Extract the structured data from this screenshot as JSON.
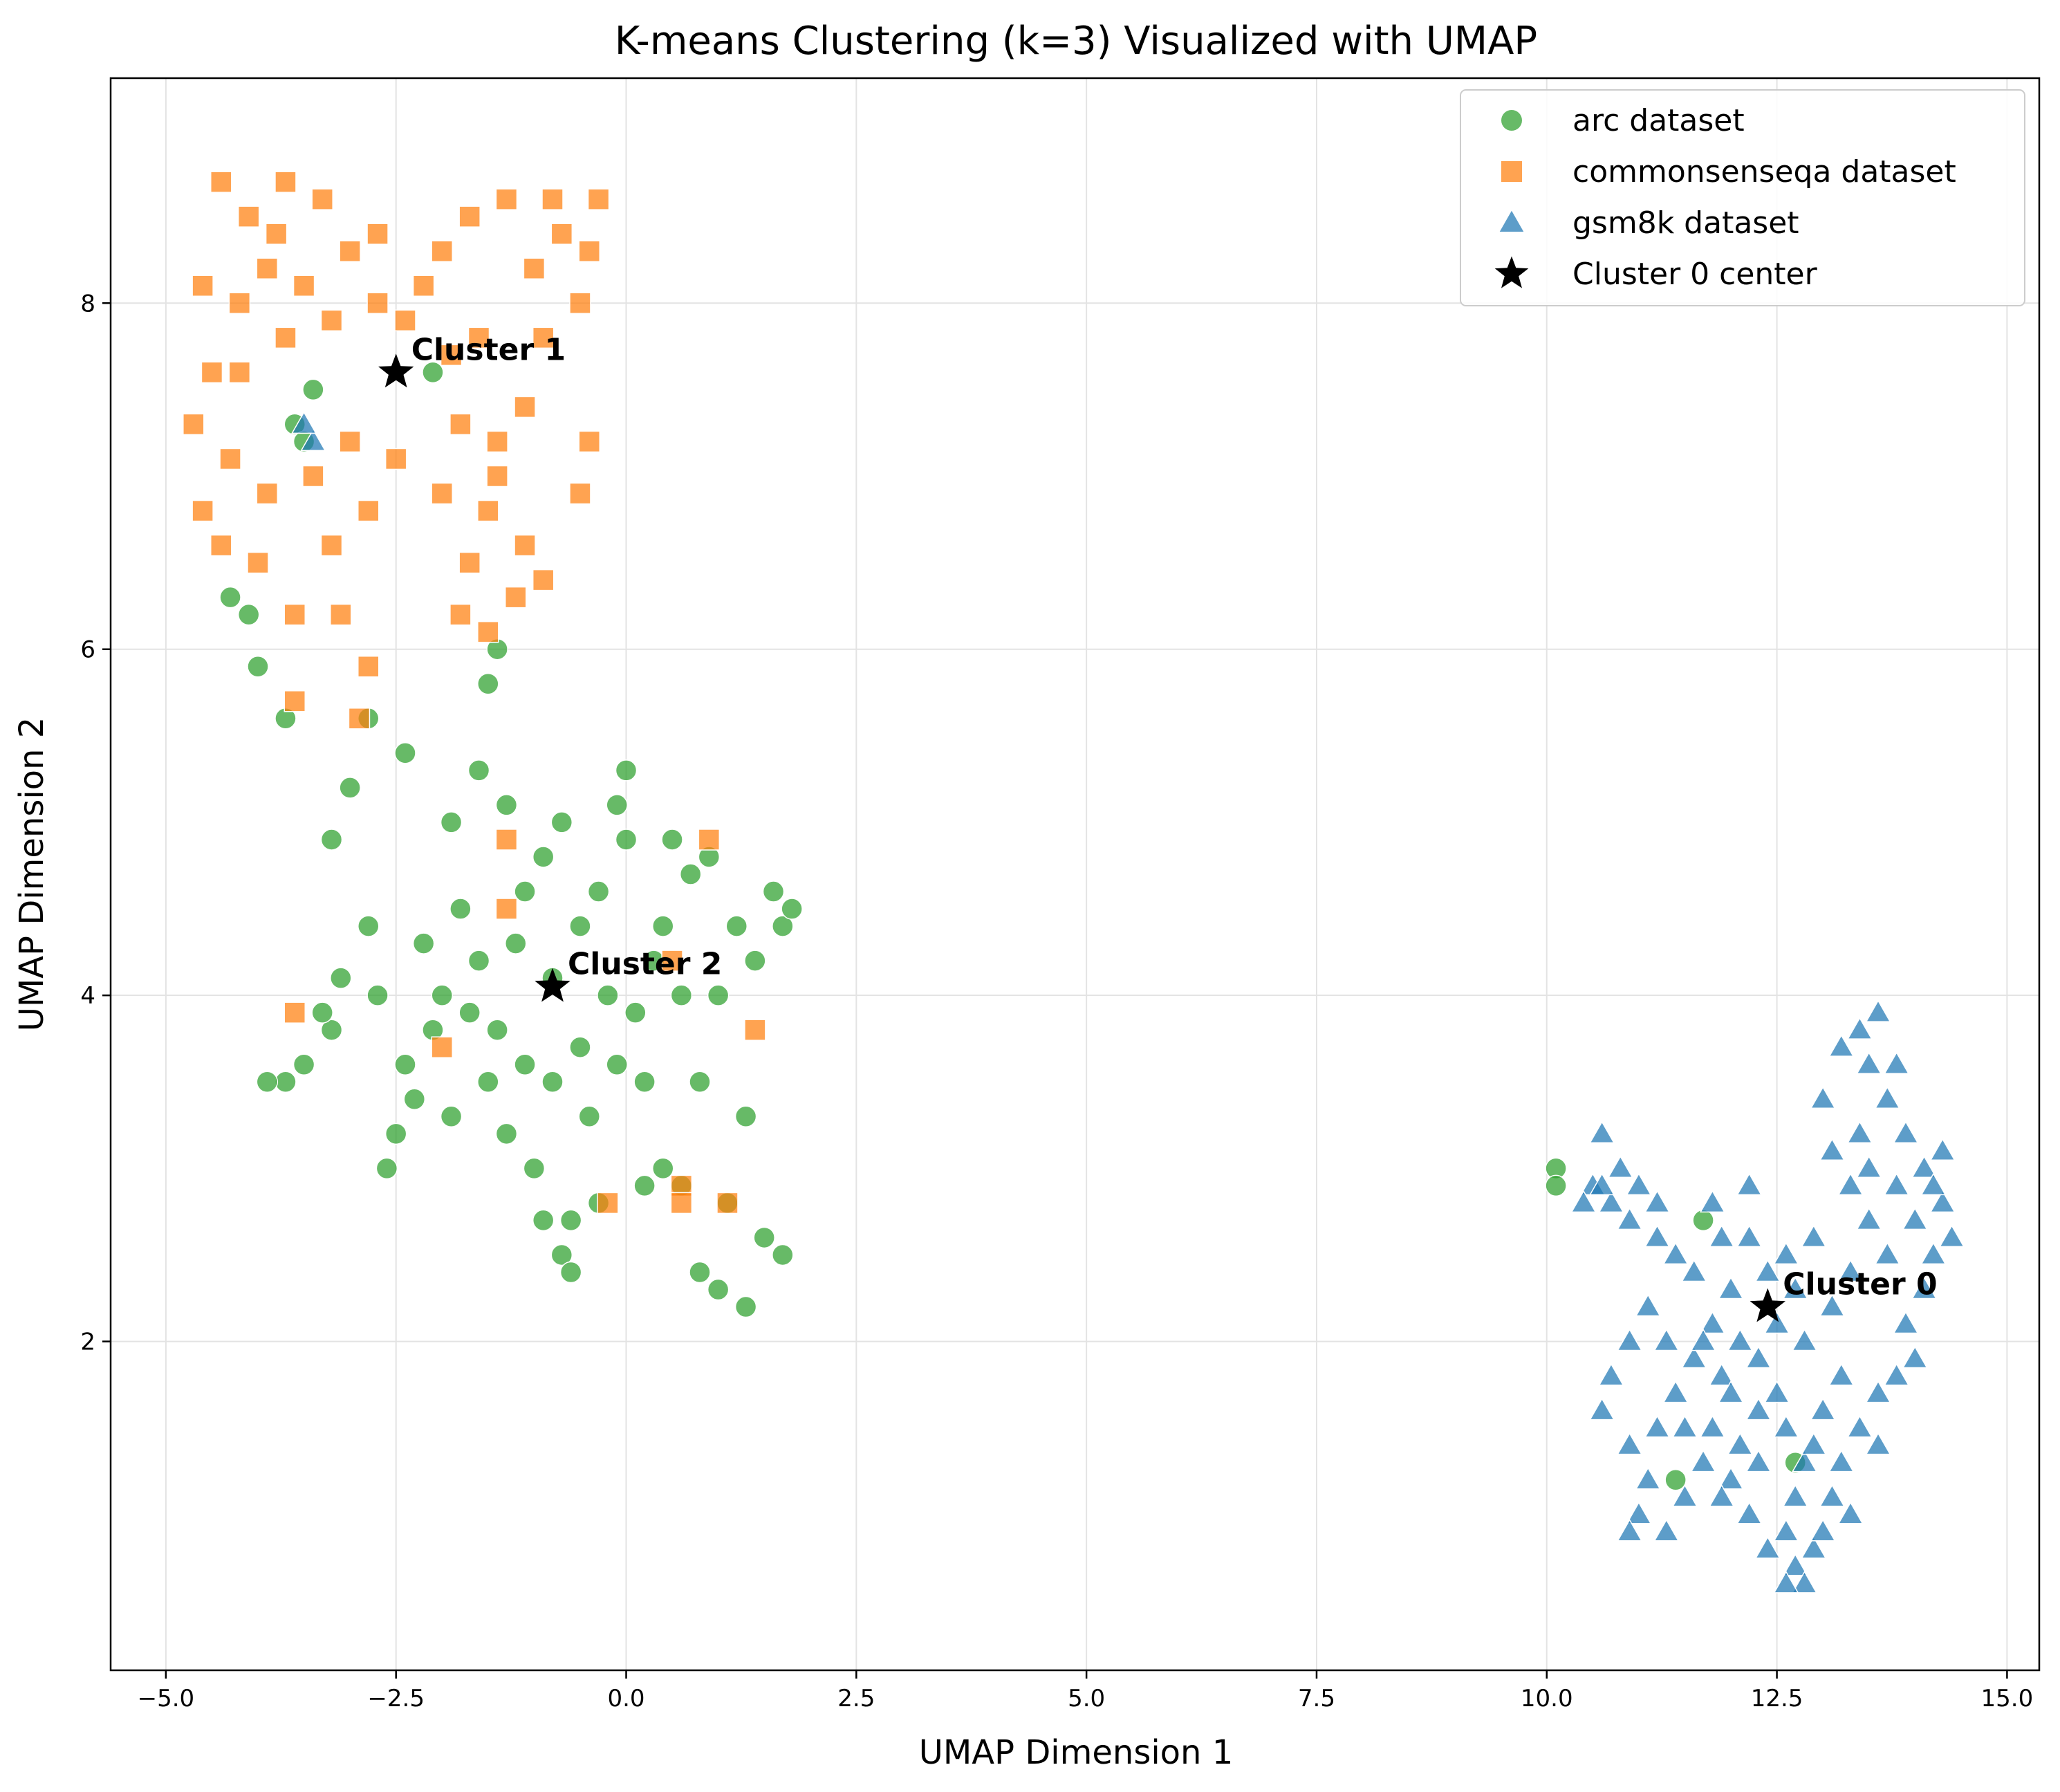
{
  "chart_data": {
    "type": "scatter",
    "title": "K-means Clustering (k=3) Visualized with UMAP",
    "xlabel": "UMAP Dimension 1",
    "ylabel": "UMAP Dimension 2",
    "xlim": [
      -5.6,
      15.35
    ],
    "ylim": [
      0.1,
      9.3
    ],
    "xticks": [
      -5.0,
      -2.5,
      0.0,
      2.5,
      5.0,
      7.5,
      10.0,
      12.5,
      15.0
    ],
    "xtick_labels": [
      "−5.0",
      "−2.5",
      "0.0",
      "2.5",
      "5.0",
      "7.5",
      "10.0",
      "12.5",
      "15.0"
    ],
    "yticks": [
      2,
      4,
      6,
      8
    ],
    "ytick_labels": [
      "2",
      "4",
      "6",
      "8"
    ],
    "grid": true,
    "legend_position": "top-right",
    "series": [
      {
        "name": "arc dataset",
        "marker": "circle",
        "color": "#2ca02c",
        "points": [
          [
            -0.8,
            4.1
          ],
          [
            -0.5,
            3.7
          ],
          [
            -1.2,
            4.3
          ],
          [
            -0.3,
            4.6
          ],
          [
            0.1,
            3.9
          ],
          [
            -1.5,
            3.5
          ],
          [
            -0.9,
            4.8
          ],
          [
            0.3,
            4.2
          ],
          [
            -2.1,
            3.8
          ],
          [
            -1.8,
            4.5
          ],
          [
            -2.5,
            3.2
          ],
          [
            -2.8,
            4.4
          ],
          [
            -3.2,
            3.8
          ],
          [
            -3.7,
            3.5
          ],
          [
            -2.6,
            3.0
          ],
          [
            -1.0,
            3.0
          ],
          [
            -0.6,
            2.7
          ],
          [
            -0.7,
            2.5
          ],
          [
            0.4,
            3.0
          ],
          [
            0.8,
            3.5
          ],
          [
            1.2,
            4.4
          ],
          [
            1.6,
            4.6
          ],
          [
            1.7,
            4.4
          ],
          [
            1.4,
            4.2
          ],
          [
            0.9,
            4.8
          ],
          [
            0.5,
            4.9
          ],
          [
            0.0,
            5.3
          ],
          [
            -0.1,
            5.1
          ],
          [
            -0.7,
            5.0
          ],
          [
            -1.3,
            5.1
          ],
          [
            -1.9,
            5.0
          ],
          [
            -2.8,
            5.6
          ],
          [
            -2.4,
            5.4
          ],
          [
            -3.2,
            4.9
          ],
          [
            -3.0,
            5.2
          ],
          [
            -1.5,
            5.8
          ],
          [
            -1.4,
            6.0
          ],
          [
            -1.6,
            5.3
          ],
          [
            -2.2,
            4.3
          ],
          [
            -2.7,
            4.0
          ],
          [
            -3.1,
            4.1
          ],
          [
            -3.5,
            3.6
          ],
          [
            -3.9,
            3.5
          ],
          [
            -3.3,
            3.9
          ],
          [
            -2.4,
            3.6
          ],
          [
            -1.9,
            3.3
          ],
          [
            -1.3,
            3.2
          ],
          [
            -0.4,
            3.3
          ],
          [
            0.2,
            3.5
          ],
          [
            0.6,
            4.0
          ],
          [
            1.0,
            4.0
          ],
          [
            1.3,
            3.3
          ],
          [
            1.1,
            2.8
          ],
          [
            1.5,
            2.6
          ],
          [
            1.7,
            2.5
          ],
          [
            1.3,
            2.2
          ],
          [
            1.0,
            2.3
          ],
          [
            0.8,
            2.4
          ],
          [
            0.6,
            2.9
          ],
          [
            0.2,
            2.9
          ],
          [
            -0.3,
            2.8
          ],
          [
            -0.6,
            2.4
          ],
          [
            -0.9,
            2.7
          ],
          [
            -1.1,
            3.6
          ],
          [
            -0.2,
            4.0
          ],
          [
            0.4,
            4.4
          ],
          [
            -0.5,
            4.4
          ],
          [
            -1.7,
            3.9
          ],
          [
            -2.0,
            4.0
          ],
          [
            -2.3,
            3.4
          ],
          [
            -1.6,
            4.2
          ],
          [
            -1.1,
            4.6
          ],
          [
            -0.8,
            3.5
          ],
          [
            -0.1,
            3.6
          ],
          [
            0.7,
            4.7
          ],
          [
            1.8,
            4.5
          ],
          [
            0.0,
            4.9
          ],
          [
            -1.4,
            3.8
          ],
          [
            -3.6,
            7.3
          ],
          [
            -4.0,
            5.9
          ],
          [
            -3.7,
            5.6
          ],
          [
            -4.3,
            6.3
          ],
          [
            -4.1,
            6.2
          ],
          [
            -2.1,
            7.6
          ],
          [
            -3.4,
            7.5
          ],
          [
            -3.5,
            7.2
          ],
          [
            10.1,
            3.0
          ],
          [
            10.1,
            2.9
          ],
          [
            11.7,
            2.7
          ],
          [
            11.4,
            1.2
          ],
          [
            12.7,
            1.3
          ]
        ]
      },
      {
        "name": "commonsenseqa dataset",
        "marker": "square",
        "color": "#ff7f0e",
        "points": [
          [
            -3.5,
            8.1
          ],
          [
            -3.8,
            8.4
          ],
          [
            -4.2,
            8.0
          ],
          [
            -4.5,
            7.6
          ],
          [
            -4.3,
            7.1
          ],
          [
            -4.6,
            6.8
          ],
          [
            -4.0,
            6.5
          ],
          [
            -3.6,
            6.2
          ],
          [
            -3.2,
            7.9
          ],
          [
            -3.0,
            8.3
          ],
          [
            -2.7,
            8.0
          ],
          [
            -2.4,
            7.9
          ],
          [
            -2.0,
            8.3
          ],
          [
            -1.7,
            8.5
          ],
          [
            -1.3,
            8.6
          ],
          [
            -1.0,
            8.2
          ],
          [
            -0.7,
            8.4
          ],
          [
            -0.4,
            8.3
          ],
          [
            -0.3,
            8.6
          ],
          [
            -0.5,
            8.0
          ],
          [
            -0.9,
            7.8
          ],
          [
            -1.1,
            7.4
          ],
          [
            -1.4,
            7.2
          ],
          [
            -1.5,
            6.8
          ],
          [
            -1.7,
            6.5
          ],
          [
            -1.8,
            6.2
          ],
          [
            -1.2,
            6.3
          ],
          [
            -0.9,
            6.4
          ],
          [
            -0.4,
            7.2
          ],
          [
            -0.5,
            6.9
          ],
          [
            -1.6,
            7.8
          ],
          [
            -1.9,
            7.7
          ],
          [
            -2.2,
            8.1
          ],
          [
            -2.7,
            8.4
          ],
          [
            -3.3,
            8.6
          ],
          [
            -3.7,
            8.7
          ],
          [
            -4.1,
            8.5
          ],
          [
            -4.4,
            8.7
          ],
          [
            -4.6,
            8.1
          ],
          [
            -4.7,
            7.3
          ],
          [
            -4.4,
            6.6
          ],
          [
            -3.9,
            6.9
          ],
          [
            -3.7,
            7.8
          ],
          [
            -3.4,
            7.0
          ],
          [
            -3.0,
            7.2
          ],
          [
            -3.2,
            6.6
          ],
          [
            -2.8,
            6.8
          ],
          [
            -3.1,
            6.2
          ],
          [
            -2.8,
            5.9
          ],
          [
            -3.6,
            5.7
          ],
          [
            -1.4,
            7.0
          ],
          [
            -1.1,
            6.6
          ],
          [
            -1.5,
            6.1
          ],
          [
            -0.8,
            8.6
          ],
          [
            -2.5,
            7.1
          ],
          [
            -2.0,
            6.9
          ],
          [
            -1.8,
            7.3
          ],
          [
            -3.9,
            8.2
          ],
          [
            -4.2,
            7.6
          ],
          [
            -2.9,
            5.6
          ],
          [
            -1.3,
            4.9
          ],
          [
            -1.3,
            4.5
          ],
          [
            -2.0,
            3.7
          ],
          [
            0.9,
            4.9
          ],
          [
            0.5,
            4.2
          ],
          [
            0.6,
            2.9
          ],
          [
            0.6,
            2.8
          ],
          [
            1.1,
            2.8
          ],
          [
            1.4,
            3.8
          ],
          [
            -3.6,
            3.9
          ],
          [
            -0.2,
            2.8
          ]
        ]
      },
      {
        "name": "gsm8k dataset",
        "marker": "triangle",
        "color": "#1f77b4",
        "points": [
          [
            10.5,
            2.9
          ],
          [
            10.7,
            2.8
          ],
          [
            10.9,
            2.7
          ],
          [
            11.2,
            2.6
          ],
          [
            11.4,
            2.5
          ],
          [
            11.1,
            2.2
          ],
          [
            10.9,
            2.0
          ],
          [
            10.7,
            1.8
          ],
          [
            10.6,
            1.6
          ],
          [
            10.9,
            1.4
          ],
          [
            11.1,
            1.2
          ],
          [
            11.0,
            1.0
          ],
          [
            10.9,
            0.9
          ],
          [
            11.3,
            0.9
          ],
          [
            11.5,
            1.1
          ],
          [
            11.7,
            1.3
          ],
          [
            11.8,
            1.5
          ],
          [
            11.9,
            1.8
          ],
          [
            12.1,
            2.0
          ],
          [
            12.3,
            1.9
          ],
          [
            12.5,
            1.7
          ],
          [
            12.6,
            1.5
          ],
          [
            12.8,
            1.3
          ],
          [
            12.7,
            1.1
          ],
          [
            12.6,
            0.9
          ],
          [
            12.7,
            0.7
          ],
          [
            12.9,
            0.8
          ],
          [
            13.1,
            1.1
          ],
          [
            13.2,
            1.3
          ],
          [
            13.4,
            1.5
          ],
          [
            13.6,
            1.7
          ],
          [
            13.8,
            1.8
          ],
          [
            13.9,
            2.1
          ],
          [
            14.1,
            2.3
          ],
          [
            14.2,
            2.5
          ],
          [
            14.3,
            2.8
          ],
          [
            14.1,
            3.0
          ],
          [
            13.9,
            3.2
          ],
          [
            13.7,
            3.4
          ],
          [
            13.5,
            3.6
          ],
          [
            13.4,
            3.8
          ],
          [
            13.6,
            3.9
          ],
          [
            13.2,
            3.7
          ],
          [
            13.0,
            3.4
          ],
          [
            13.1,
            3.1
          ],
          [
            13.3,
            2.9
          ],
          [
            13.5,
            2.7
          ],
          [
            13.3,
            2.4
          ],
          [
            13.1,
            2.2
          ],
          [
            12.8,
            2.0
          ],
          [
            12.4,
            2.4
          ],
          [
            12.2,
            2.6
          ],
          [
            12.0,
            2.3
          ],
          [
            11.8,
            2.1
          ],
          [
            11.6,
            1.9
          ],
          [
            11.4,
            1.7
          ],
          [
            11.2,
            1.5
          ],
          [
            12.0,
            1.2
          ],
          [
            12.2,
            1.0
          ],
          [
            12.4,
            0.8
          ],
          [
            14.0,
            2.7
          ],
          [
            14.3,
            3.1
          ],
          [
            13.8,
            2.9
          ],
          [
            13.4,
            3.2
          ],
          [
            13.2,
            1.8
          ],
          [
            13.0,
            1.6
          ],
          [
            12.9,
            1.4
          ],
          [
            12.3,
            1.6
          ],
          [
            12.1,
            1.4
          ],
          [
            11.9,
            1.1
          ],
          [
            10.6,
            3.2
          ],
          [
            10.8,
            3.0
          ],
          [
            11.0,
            2.9
          ],
          [
            11.6,
            2.4
          ],
          [
            11.3,
            2.0
          ],
          [
            11.5,
            1.5
          ],
          [
            12.5,
            2.1
          ],
          [
            12.7,
            2.3
          ],
          [
            12.9,
            2.6
          ],
          [
            13.7,
            2.5
          ],
          [
            14.0,
            1.9
          ],
          [
            13.6,
            1.4
          ],
          [
            13.3,
            1.0
          ],
          [
            13.0,
            0.9
          ],
          [
            12.8,
            0.6
          ],
          [
            12.6,
            0.6
          ],
          [
            12.3,
            1.3
          ],
          [
            12.0,
            1.7
          ],
          [
            11.7,
            2.0
          ],
          [
            11.9,
            2.6
          ],
          [
            13.5,
            3.0
          ],
          [
            13.8,
            3.6
          ],
          [
            14.2,
            2.9
          ],
          [
            14.4,
            2.6
          ],
          [
            10.4,
            2.8
          ],
          [
            10.6,
            2.9
          ],
          [
            11.2,
            2.8
          ],
          [
            11.8,
            2.8
          ],
          [
            12.2,
            2.9
          ],
          [
            12.6,
            2.5
          ],
          [
            -3.4,
            7.2
          ],
          [
            -3.5,
            7.3
          ]
        ]
      },
      {
        "name": "Cluster 0 center",
        "marker": "star",
        "color": "#000000",
        "points": [
          [
            12.4,
            2.2
          ],
          [
            -2.5,
            7.6
          ],
          [
            -0.8,
            4.05
          ]
        ]
      }
    ],
    "annotations": [
      {
        "text": "Cluster 1",
        "x": -2.5,
        "y": 7.6
      },
      {
        "text": "Cluster 2",
        "x": -0.8,
        "y": 4.05
      },
      {
        "text": "Cluster 0",
        "x": 12.4,
        "y": 2.2
      }
    ]
  }
}
